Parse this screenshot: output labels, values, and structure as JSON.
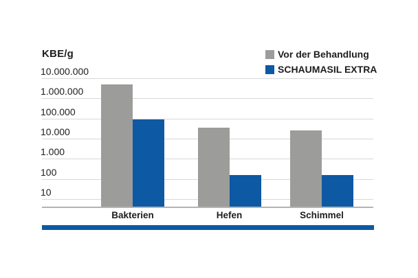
{
  "chart_data": {
    "type": "bar",
    "yscale": "log",
    "title": "",
    "ylabel": "KBE/g",
    "xlabel": "",
    "categories": [
      "Bakterien",
      "Hefen",
      "Schimmel"
    ],
    "series": [
      {
        "name": "Vor der Behandlung",
        "color": "#9c9c9a",
        "values": [
          5000000,
          35000,
          25000
        ]
      },
      {
        "name": "SCHAUMASIL EXTRA",
        "color": "#0d59a4",
        "values": [
          90000,
          150,
          150
        ]
      }
    ],
    "y_ticks": [
      {
        "label": "10.000.000",
        "value": 10000000
      },
      {
        "label": "1.000.000",
        "value": 1000000
      },
      {
        "label": "100.000",
        "value": 100000
      },
      {
        "label": "10.000",
        "value": 10000
      },
      {
        "label": "1.000",
        "value": 1000
      },
      {
        "label": "100",
        "value": 100
      },
      {
        "label": "10",
        "value": 10
      }
    ],
    "ylim": [
      5,
      10000000
    ],
    "grid": true,
    "legend_position": "top-right"
  },
  "colors": {
    "background": "#ffffff",
    "bar_gray": "#9c9c9a",
    "bar_blue": "#0d59a4",
    "gridline": "#d8d8d8",
    "axis_line": "#b3b3b3",
    "accent_stripe": "#0d59a4",
    "text": "#1d1d1b"
  }
}
